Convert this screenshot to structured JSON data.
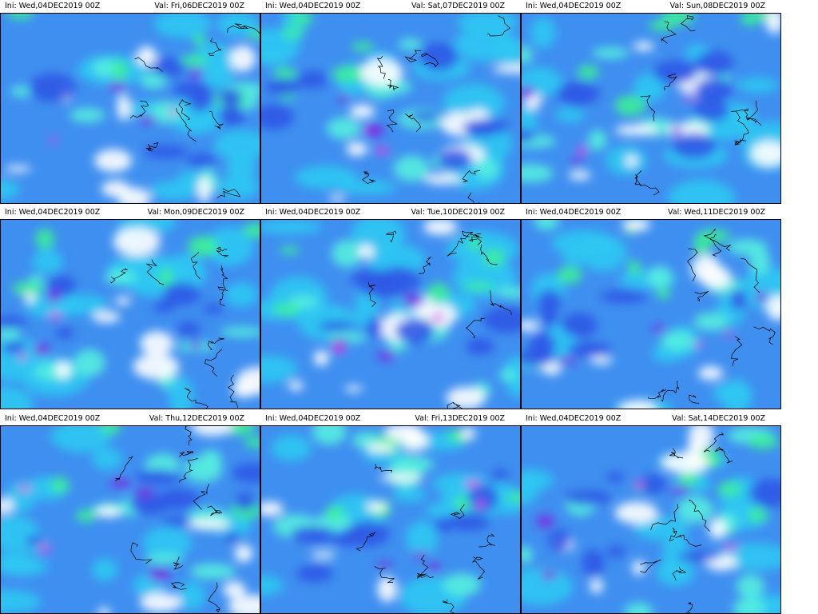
{
  "panels": [
    {
      "ini": "Ini: Wed,04DEC2019 00Z",
      "val": "Val: Fri,06DEC2019 00Z"
    },
    {
      "ini": "Ini: Wed,04DEC2019 00Z",
      "val": "Val: Sat,07DEC2019 00Z"
    },
    {
      "ini": "Ini: Wed,04DEC2019 00Z",
      "val": "Val: Sun,08DEC2019 00Z"
    },
    {
      "ini": "Ini: Wed,04DEC2019 00Z",
      "val": "Val: Mon,09DEC2019 00Z"
    },
    {
      "ini": "Ini: Wed,04DEC2019 00Z",
      "val": "Val: Tue,10DEC2019 00Z"
    },
    {
      "ini": "Ini: Wed,04DEC2019 00Z",
      "val": "Val: Wed,11DEC2019 00Z"
    },
    {
      "ini": "Ini: Wed,04DEC2019 00Z",
      "val": "Val: Thu,12DEC2019 00Z"
    },
    {
      "ini": "Ini: Wed,04DEC2019 00Z",
      "val": "Val: Fri,13DEC2019 00Z"
    },
    {
      "ini": "Ini: Wed,04DEC2019 00Z",
      "val": "Val: Sat,14DEC2019 00Z"
    }
  ]
}
